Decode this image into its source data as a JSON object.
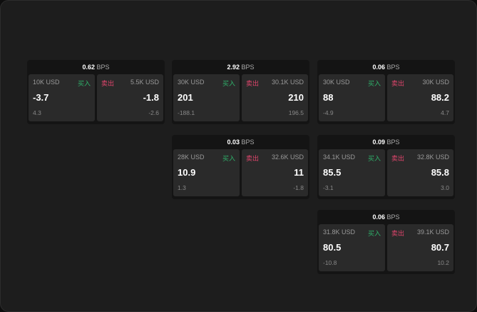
{
  "buy_label": "买入",
  "sell_label": "卖出",
  "unit": "BPS",
  "colors": {
    "buy": "#2fb36b",
    "sell": "#e0456c"
  },
  "cards": [
    {
      "spread": "0.62",
      "bid_size": "10K USD",
      "bid": "-3.7",
      "bid_change": "4.3",
      "ask_size": "5.5K USD",
      "ask": "-1.8",
      "ask_change": "-2.6"
    },
    {
      "spread": "2.92",
      "bid_size": "30K USD",
      "bid": "201",
      "bid_change": "-188.1",
      "ask_size": "30.1K USD",
      "ask": "210",
      "ask_change": "196.5"
    },
    {
      "spread": "0.06",
      "bid_size": "30K USD",
      "bid": "88",
      "bid_change": "-4.9",
      "ask_size": "30K USD",
      "ask": "88.2",
      "ask_change": "4.7"
    },
    {
      "spread": "0.03",
      "bid_size": "28K USD",
      "bid": "10.9",
      "bid_change": "1.3",
      "ask_size": "32.6K USD",
      "ask": "11",
      "ask_change": "-1.8"
    },
    {
      "spread": "0.09",
      "bid_size": "34.1K USD",
      "bid": "85.5",
      "bid_change": "-3.1",
      "ask_size": "32.8K USD",
      "ask": "85.8",
      "ask_change": "3.0"
    },
    {
      "spread": "0.06",
      "bid_size": "31.8K USD",
      "bid": "80.5",
      "bid_change": "-10.8",
      "ask_size": "39.1K USD",
      "ask": "80.7",
      "ask_change": "10.2"
    }
  ]
}
